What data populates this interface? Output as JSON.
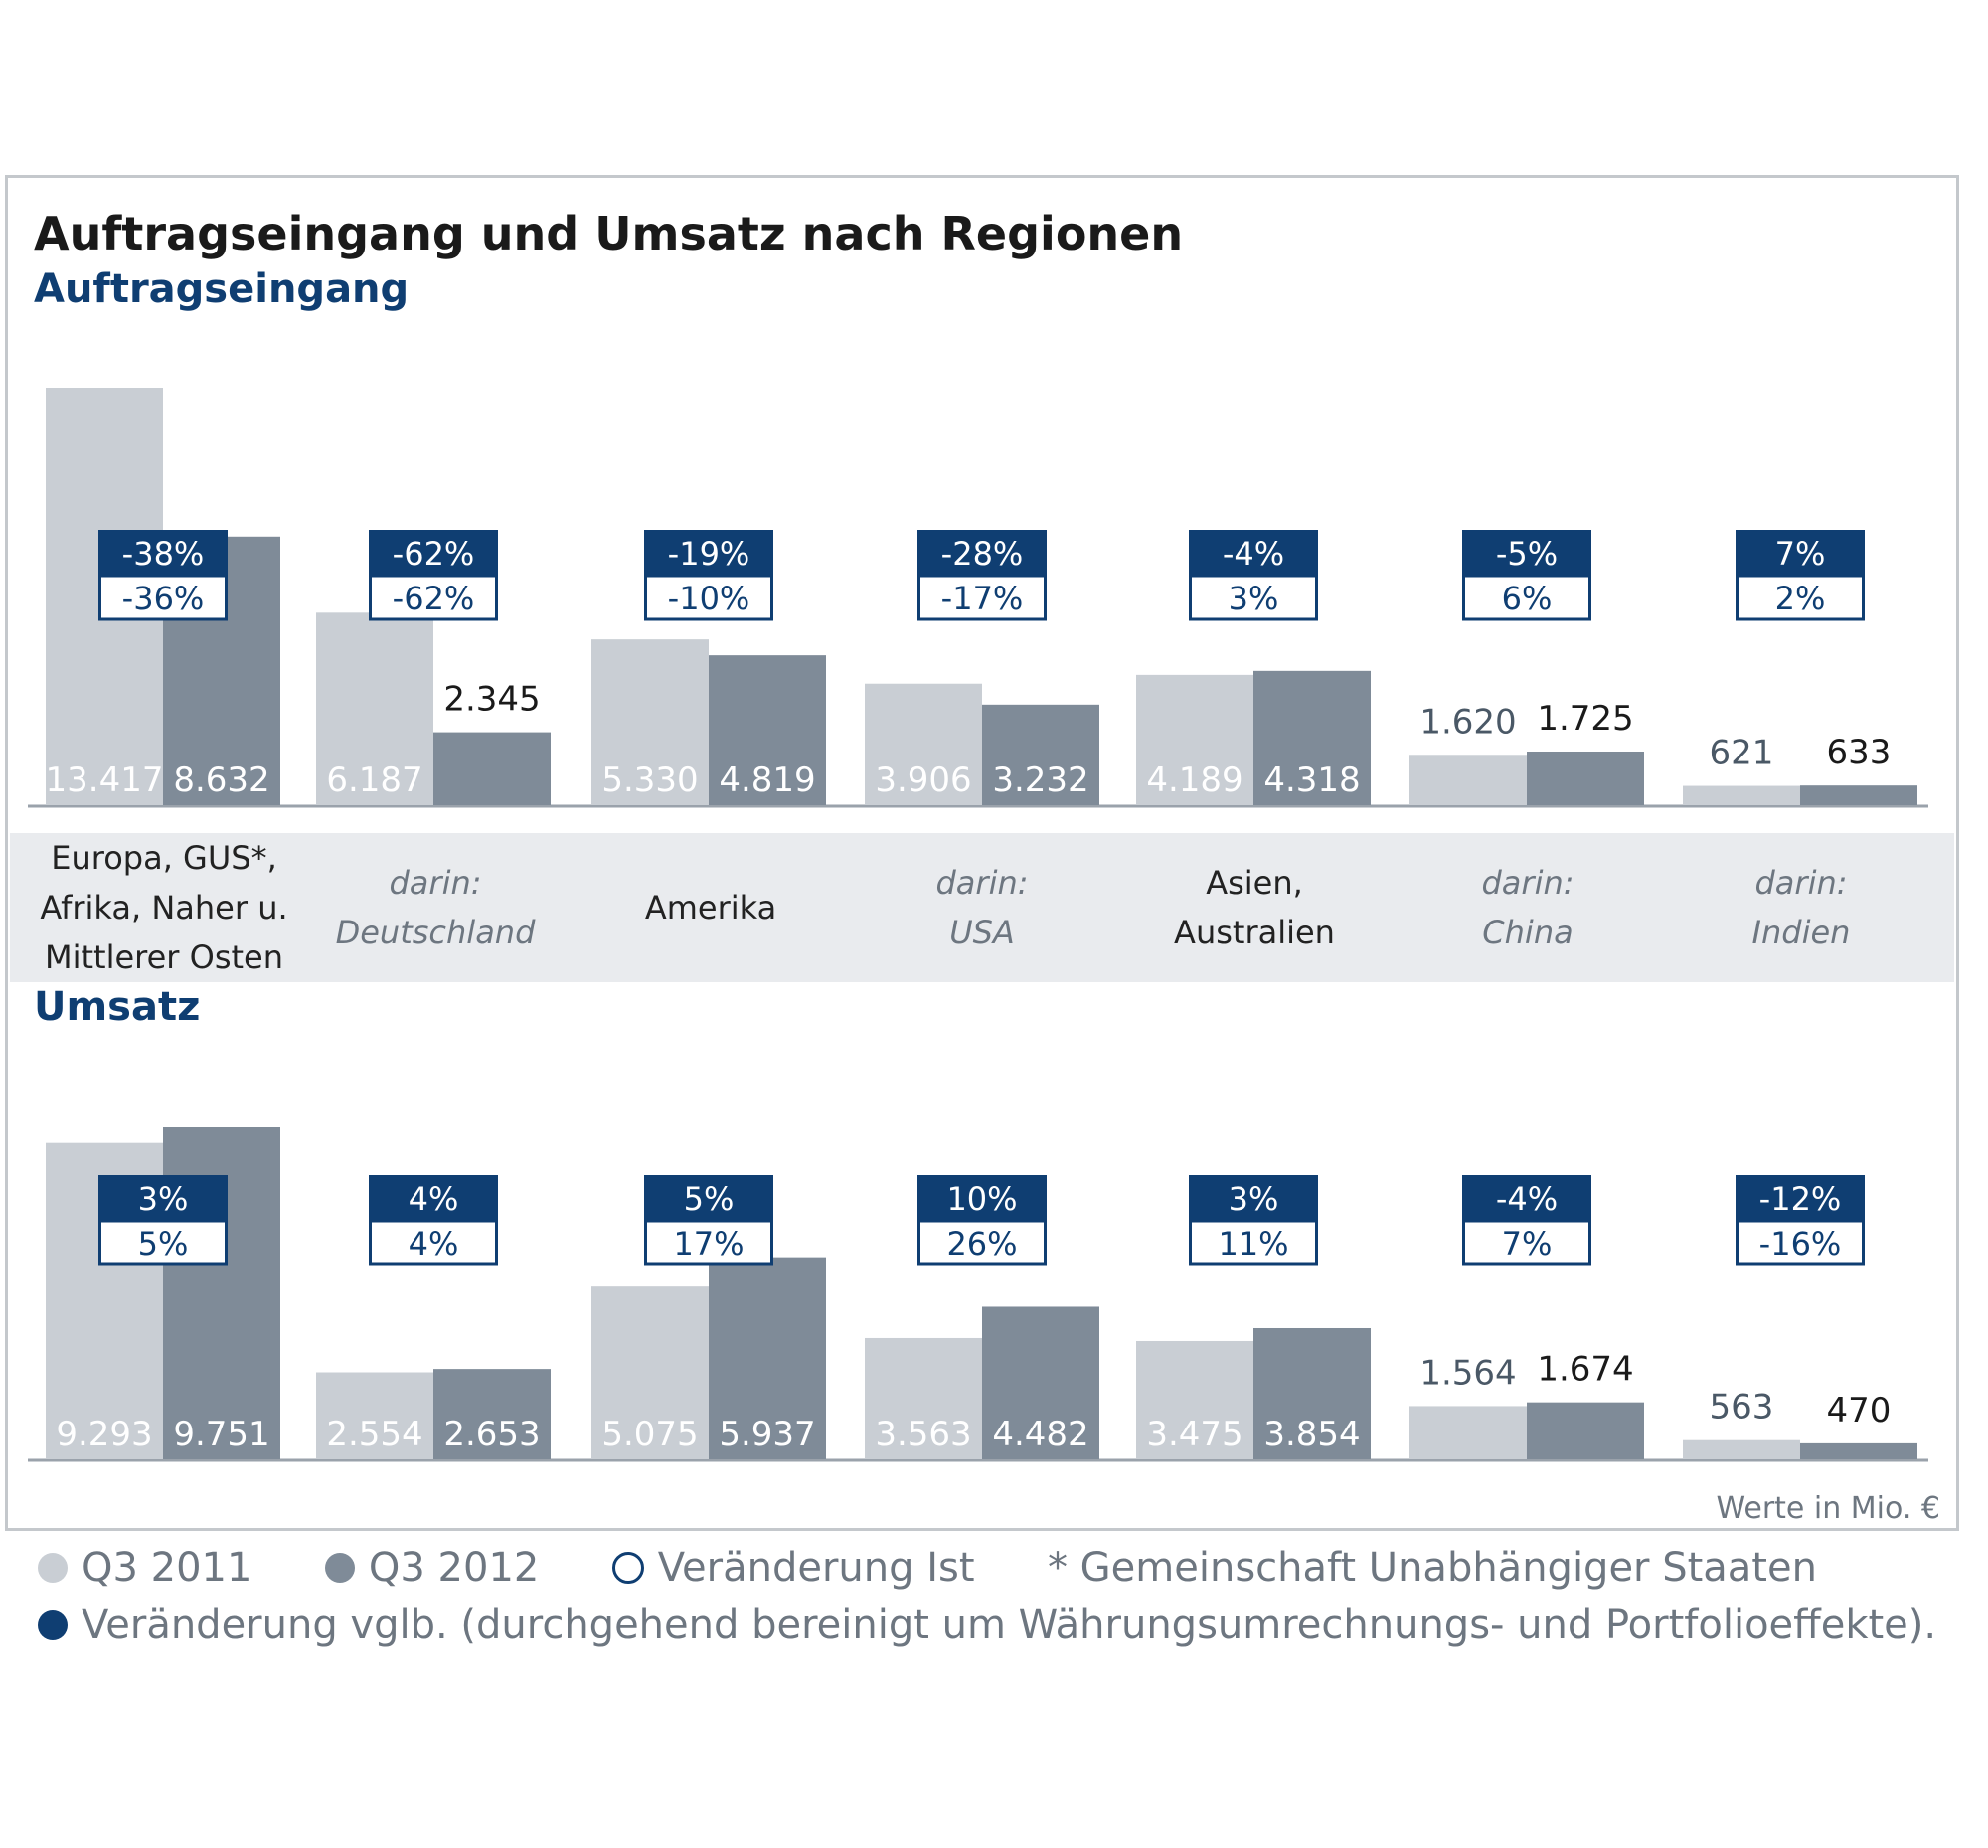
{
  "title": "Auftragseingang und Umsatz nach Regionen",
  "unit_note": "Werte in Mio. €",
  "legend": {
    "q3_2011": "Q3 2011",
    "q3_2012": "Q3 2012",
    "change_actual": "Veränderung Ist",
    "footnote": "* Gemeinschaft Unabhängiger Staaten",
    "change_comparable": "Veränderung vglb. (durchgehend bereinigt um Währungsumrechnungs- und Portfolioeffekte)."
  },
  "colors": {
    "q3_2011": "#c9ced4",
    "q3_2012": "#7f8b98",
    "accent": "#0f3e72",
    "axis": "#9aa2ab"
  },
  "categories": [
    {
      "text": "Europa, GUS*,\nAfrika, Naher u.\nMittlerer Osten",
      "sub": false
    },
    {
      "text": "darin:\nDeutschland",
      "sub": true
    },
    {
      "text": "Amerika",
      "sub": false
    },
    {
      "text": "darin:\nUSA",
      "sub": true
    },
    {
      "text": "Asien,\nAustralien",
      "sub": false
    },
    {
      "text": "darin:\nChina",
      "sub": true
    },
    {
      "text": "darin:\nIndien",
      "sub": true
    }
  ],
  "chart_data": [
    {
      "type": "bar",
      "title": "Auftragseingang",
      "series": [
        {
          "name": "Q3 2011",
          "values": [
            13417,
            6187,
            5330,
            3906,
            4189,
            1620,
            621
          ],
          "labels": [
            "13.417",
            "6.187",
            "5.330",
            "3.906",
            "4.189",
            "1.620",
            "621"
          ]
        },
        {
          "name": "Q3 2012",
          "values": [
            8632,
            2345,
            4819,
            3232,
            4318,
            1725,
            633
          ],
          "labels": [
            "8.632",
            "2.345",
            "4.819",
            "3.232",
            "4.318",
            "1.725",
            "633"
          ]
        }
      ],
      "change_comparable": [
        "-38%",
        "-62%",
        "-19%",
        "-28%",
        "-4%",
        "-5%",
        "7%"
      ],
      "change_actual": [
        "-36%",
        "-62%",
        "-10%",
        "-17%",
        "3%",
        "6%",
        "2%"
      ],
      "ylim": [
        0,
        13417
      ]
    },
    {
      "type": "bar",
      "title": "Umsatz",
      "series": [
        {
          "name": "Q3 2011",
          "values": [
            9293,
            2554,
            5075,
            3563,
            3475,
            1564,
            563
          ],
          "labels": [
            "9.293",
            "2.554",
            "5.075",
            "3.563",
            "3.475",
            "1.564",
            "563"
          ]
        },
        {
          "name": "Q3 2012",
          "values": [
            9751,
            2653,
            5937,
            4482,
            3854,
            1674,
            470
          ],
          "labels": [
            "9.751",
            "2.653",
            "5.937",
            "4.482",
            "3.854",
            "1.674",
            "470"
          ]
        }
      ],
      "change_comparable": [
        "3%",
        "4%",
        "5%",
        "10%",
        "3%",
        "-4%",
        "-12%"
      ],
      "change_actual": [
        "5%",
        "4%",
        "17%",
        "26%",
        "11%",
        "7%",
        "-16%"
      ],
      "ylim": [
        0,
        9751
      ]
    }
  ]
}
